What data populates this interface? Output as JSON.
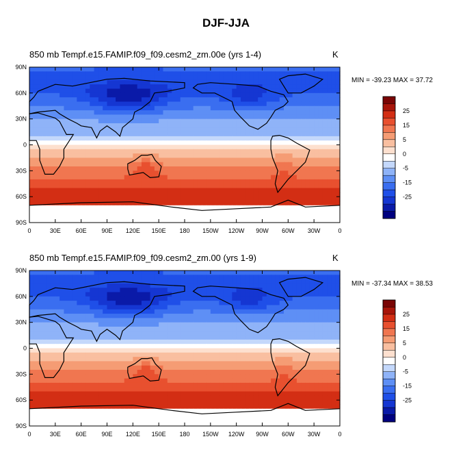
{
  "title": "DJF-JJA",
  "colorbar_colors": [
    "#00007f",
    "#0a1aa8",
    "#1536d2",
    "#1f4fe8",
    "#3a6ef0",
    "#5e8ff5",
    "#8fb3f8",
    "#c4d8fb",
    "#ffffff",
    "#fde0cf",
    "#f9bfa0",
    "#f59c74",
    "#f07650",
    "#e8502f",
    "#d32e14",
    "#a8150a",
    "#7a0505"
  ],
  "colorbar_ticks": [
    "25",
    "15",
    "5",
    "0",
    "-5",
    "-15",
    "-25"
  ],
  "chart_data": [
    {
      "type": "filled-contour-map",
      "title": "850 mb Tempf.e15.FAMIP.f09_f09.cesm2_zm.00e (yrs 1-4)",
      "units": "K",
      "min": -39.23,
      "max": 37.72,
      "minmax_text": "MIN = -39.23 MAX =  37.72",
      "lat_ticks": [
        "90N",
        "60N",
        "30N",
        "0",
        "30S",
        "60S",
        "90S"
      ],
      "lon_ticks": [
        "0",
        "30E",
        "60E",
        "90E",
        "120E",
        "150E",
        "180",
        "150W",
        "120W",
        "90W",
        "60W",
        "30W",
        "0"
      ],
      "colorbar_levels": [
        -30,
        -25,
        -20,
        -15,
        -10,
        -5,
        -2,
        0,
        2,
        5,
        10,
        15,
        20,
        25,
        30
      ]
    },
    {
      "type": "filled-contour-map",
      "title": "850 mb Tempf.e15.FAMIP.f09_f09.cesm2_zm.00 (yrs 1-9)",
      "units": "K",
      "min": -37.34,
      "max": 38.53,
      "minmax_text": "MIN = -37.34 MAX =  38.53",
      "lat_ticks": [
        "90N",
        "60N",
        "30N",
        "0",
        "30S",
        "60S",
        "90S"
      ],
      "lon_ticks": [
        "0",
        "30E",
        "60E",
        "90E",
        "120E",
        "150E",
        "180",
        "150W",
        "120W",
        "90W",
        "60W",
        "30W",
        "0"
      ],
      "colorbar_levels": [
        -30,
        -25,
        -20,
        -15,
        -10,
        -5,
        -2,
        0,
        2,
        5,
        10,
        15,
        20,
        25,
        30
      ]
    }
  ]
}
